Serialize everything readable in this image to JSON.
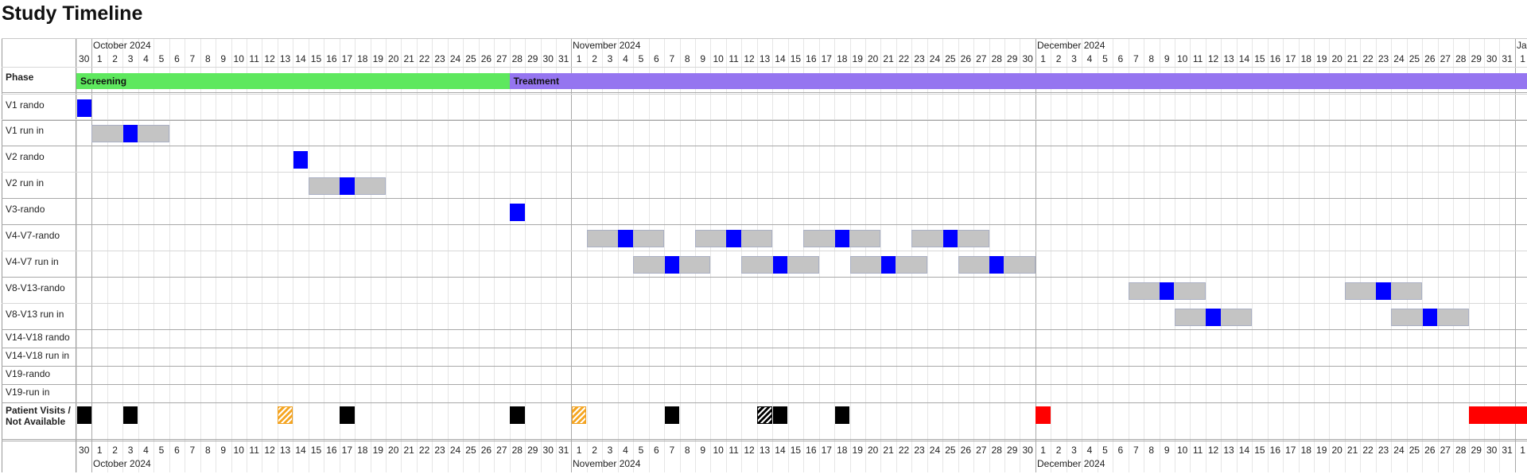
{
  "title": "Study Timeline",
  "timeline": {
    "months": [
      {
        "label": "October 2024",
        "first_day_index": 1
      },
      {
        "label": "November 2024",
        "first_day_index": 32
      },
      {
        "label": "December 2024",
        "first_day_index": 62
      },
      {
        "label": "Ja",
        "first_day_index": 93
      }
    ],
    "days": [
      "30",
      "1",
      "2",
      "3",
      "4",
      "5",
      "6",
      "7",
      "8",
      "9",
      "10",
      "11",
      "12",
      "13",
      "14",
      "15",
      "16",
      "17",
      "18",
      "19",
      "20",
      "21",
      "22",
      "23",
      "24",
      "25",
      "26",
      "27",
      "28",
      "29",
      "30",
      "31",
      "1",
      "2",
      "3",
      "4",
      "5",
      "6",
      "7",
      "8",
      "9",
      "10",
      "11",
      "12",
      "13",
      "14",
      "15",
      "16",
      "17",
      "18",
      "19",
      "20",
      "21",
      "22",
      "23",
      "24",
      "25",
      "26",
      "27",
      "28",
      "29",
      "30",
      "1",
      "2",
      "3",
      "4",
      "5",
      "6",
      "7",
      "8",
      "9",
      "10",
      "11",
      "12",
      "13",
      "14",
      "15",
      "16",
      "17",
      "18",
      "19",
      "20",
      "21",
      "22",
      "23",
      "24",
      "25",
      "26",
      "27",
      "28",
      "29",
      "30",
      "31",
      "1"
    ],
    "bottom_months": [
      "October 2024",
      "November 2024",
      "December 2024"
    ]
  },
  "rows": [
    {
      "label": "Phase",
      "bold": true
    },
    {
      "label": "V1 rando"
    },
    {
      "label": "V1 run in"
    },
    {
      "label": "V2 rando"
    },
    {
      "label": "V2 run in"
    },
    {
      "label": "V3-rando"
    },
    {
      "label": "V4-V7-rando"
    },
    {
      "label": "V4-V7 run in"
    },
    {
      "label": "V8-V13-rando"
    },
    {
      "label": "V8-V13 run in"
    },
    {
      "label": "V14-V18 rando"
    },
    {
      "label": "V14-V18 run in"
    },
    {
      "label": "V19-rando"
    },
    {
      "label": "V19-run in"
    },
    {
      "label": "Patient Visits / Not Available",
      "bold": true
    }
  ],
  "phases": [
    {
      "label": "Screening",
      "start_day_index": 0,
      "end_day_index": 28,
      "color": "#5ee85e"
    },
    {
      "label": "Treatment",
      "start_day_index": 28,
      "end_day_index": 95,
      "color": "#9575f0"
    }
  ],
  "visit_windows": [
    {
      "row": "V1 run in",
      "start_day_index": 1,
      "end_day_index": 6
    },
    {
      "row": "V2 run in",
      "start_day_index": 15,
      "end_day_index": 20
    },
    {
      "row": "V4-V7-rando",
      "start_day_index": 33,
      "end_day_index": 38
    },
    {
      "row": "V4-V7-rando",
      "start_day_index": 40,
      "end_day_index": 45
    },
    {
      "row": "V4-V7-rando",
      "start_day_index": 47,
      "end_day_index": 52
    },
    {
      "row": "V4-V7-rando",
      "start_day_index": 54,
      "end_day_index": 59
    },
    {
      "row": "V4-V7 run in",
      "start_day_index": 36,
      "end_day_index": 41
    },
    {
      "row": "V4-V7 run in",
      "start_day_index": 43,
      "end_day_index": 48
    },
    {
      "row": "V4-V7 run in",
      "start_day_index": 50,
      "end_day_index": 55
    },
    {
      "row": "V4-V7 run in",
      "start_day_index": 57,
      "end_day_index": 62
    },
    {
      "row": "V8-V13-rando",
      "start_day_index": 68,
      "end_day_index": 73
    },
    {
      "row": "V8-V13-rando",
      "start_day_index": 82,
      "end_day_index": 87
    },
    {
      "row": "V8-V13 run in",
      "start_day_index": 71,
      "end_day_index": 76
    },
    {
      "row": "V8-V13 run in",
      "start_day_index": 85,
      "end_day_index": 90
    }
  ],
  "visits": [
    {
      "row": "V1 rando",
      "day_index": 0
    },
    {
      "row": "V1 run in",
      "day_index": 3
    },
    {
      "row": "V2 rando",
      "day_index": 14
    },
    {
      "row": "V2 run in",
      "day_index": 17
    },
    {
      "row": "V3-rando",
      "day_index": 28
    },
    {
      "row": "V4-V7-rando",
      "day_index": 35
    },
    {
      "row": "V4-V7-rando",
      "day_index": 42
    },
    {
      "row": "V4-V7-rando",
      "day_index": 49
    },
    {
      "row": "V4-V7-rando",
      "day_index": 56
    },
    {
      "row": "V4-V7 run in",
      "day_index": 38
    },
    {
      "row": "V4-V7 run in",
      "day_index": 45
    },
    {
      "row": "V4-V7 run in",
      "day_index": 52
    },
    {
      "row": "V4-V7 run in",
      "day_index": 59
    },
    {
      "row": "V8-V13-rando",
      "day_index": 70
    },
    {
      "row": "V8-V13-rando",
      "day_index": 84
    },
    {
      "row": "V8-V13 run in",
      "day_index": 73
    },
    {
      "row": "V8-V13 run in",
      "day_index": 87
    }
  ],
  "patient_visits": [
    {
      "type": "black",
      "start_day_index": 0,
      "end_day_index": 1
    },
    {
      "type": "black",
      "start_day_index": 3,
      "end_day_index": 4
    },
    {
      "type": "hatch-orange",
      "start_day_index": 13,
      "end_day_index": 14
    },
    {
      "type": "black",
      "start_day_index": 17,
      "end_day_index": 18
    },
    {
      "type": "black",
      "start_day_index": 28,
      "end_day_index": 29
    },
    {
      "type": "hatch-orange",
      "start_day_index": 32,
      "end_day_index": 33
    },
    {
      "type": "black",
      "start_day_index": 38,
      "end_day_index": 39
    },
    {
      "type": "hatch-black",
      "start_day_index": 44,
      "end_day_index": 45
    },
    {
      "type": "black",
      "start_day_index": 45,
      "end_day_index": 46
    },
    {
      "type": "black",
      "start_day_index": 49,
      "end_day_index": 50
    },
    {
      "type": "red",
      "start_day_index": 62,
      "end_day_index": 63
    },
    {
      "type": "red",
      "start_day_index": 90,
      "end_day_index": 95
    }
  ],
  "colors": {
    "visit": "#0000ff",
    "window": "#c4c4c4",
    "screening": "#5ee85e",
    "treatment": "#9575f0",
    "patient_visit": "#000000",
    "not_available": "#ff0000",
    "tentative": "#f5a623"
  }
}
